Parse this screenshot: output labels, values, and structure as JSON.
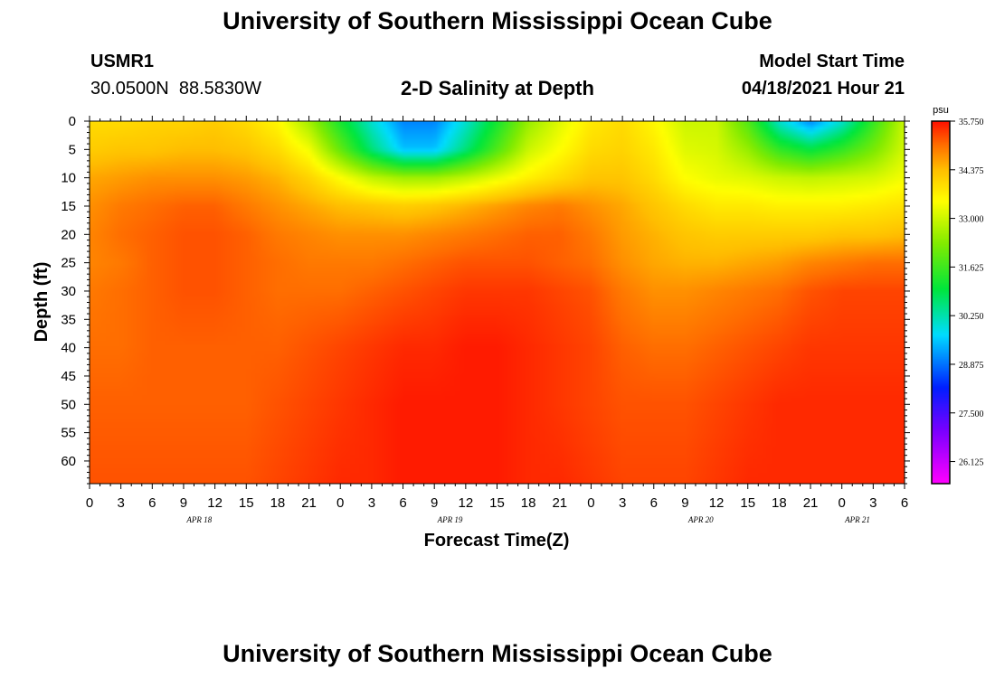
{
  "header": {
    "title": "University of Southern Mississippi Ocean Cube",
    "station_id": "USMR1",
    "coordinates": "30.0500N  88.5830W",
    "plot_title": "2-D Salinity at Depth",
    "model_start_label": "Model Start Time",
    "model_start_value": "04/18/2021 Hour 21",
    "footer_title": "University of Southern Mississippi Ocean Cube"
  },
  "colorbar": {
    "unit": "psu",
    "ticks": [
      "35.750",
      "34.375",
      "33.000",
      "31.625",
      "30.250",
      "28.875",
      "27.500",
      "26.125"
    ],
    "min": 25.5,
    "max": 35.75
  },
  "chart_data": {
    "type": "heatmap",
    "title": "2-D Salinity at Depth",
    "xlabel": "Forecast Time(Z)",
    "ylabel": "Depth (ft)",
    "x_tick_labels": [
      "0",
      "3",
      "6",
      "9",
      "12",
      "15",
      "18",
      "21",
      "0",
      "3",
      "6",
      "9",
      "12",
      "15",
      "18",
      "21",
      "0",
      "3",
      "6",
      "9",
      "12",
      "15",
      "18",
      "21",
      "0",
      "3",
      "6"
    ],
    "x_hours_range": [
      0,
      78
    ],
    "x_date_labels": [
      {
        "label": "APR 18",
        "hour": 10.5
      },
      {
        "label": "APR 19",
        "hour": 34.5
      },
      {
        "label": "APR 20",
        "hour": 58.5
      },
      {
        "label": "APR 21",
        "hour": 73.5
      }
    ],
    "y_tick_labels": [
      "0",
      "5",
      "10",
      "15",
      "20",
      "25",
      "30",
      "35",
      "40",
      "45",
      "50",
      "55",
      "60"
    ],
    "y_ticks_ft": [
      0,
      5,
      10,
      15,
      20,
      25,
      30,
      35,
      40,
      45,
      50,
      55,
      60
    ],
    "ylim_ft": [
      0,
      64
    ],
    "value_unit": "psu",
    "depth_ft": [
      0,
      5,
      10,
      15,
      20,
      25,
      30,
      40,
      50,
      64
    ],
    "hours": [
      0,
      3,
      6,
      9,
      12,
      15,
      18,
      21,
      24,
      27,
      30,
      33,
      36,
      39,
      42,
      45,
      48,
      51,
      54,
      57,
      60,
      63,
      66,
      69,
      72,
      75,
      78
    ],
    "salinity_psu": [
      [
        34.0,
        34.0,
        34.1,
        34.1,
        34.2,
        34.0,
        33.6,
        32.6,
        31.2,
        30.0,
        29.0,
        29.0,
        30.0,
        31.2,
        32.5,
        33.2,
        33.8,
        34.0,
        33.6,
        33.0,
        33.0,
        31.8,
        30.0,
        29.0,
        30.0,
        31.5,
        33.0
      ],
      [
        34.2,
        34.3,
        34.3,
        34.4,
        34.4,
        34.3,
        34.0,
        33.4,
        32.0,
        30.6,
        29.5,
        29.5,
        30.6,
        31.8,
        33.0,
        33.5,
        34.0,
        34.1,
        33.8,
        33.2,
        33.1,
        32.5,
        31.5,
        31.0,
        31.5,
        32.2,
        33.1
      ],
      [
        34.6,
        34.7,
        34.8,
        34.8,
        34.8,
        34.7,
        34.5,
        34.1,
        33.5,
        32.9,
        32.6,
        32.6,
        32.9,
        33.3,
        33.7,
        34.0,
        34.3,
        34.3,
        34.0,
        33.5,
        33.3,
        33.2,
        33.0,
        32.9,
        33.0,
        33.1,
        33.4
      ],
      [
        34.8,
        35.0,
        35.1,
        35.2,
        35.2,
        35.0,
        34.8,
        34.6,
        34.4,
        34.3,
        34.2,
        34.3,
        34.5,
        34.7,
        34.9,
        35.0,
        34.8,
        34.6,
        34.3,
        34.0,
        33.8,
        33.8,
        33.7,
        33.7,
        33.7,
        33.8,
        33.9
      ],
      [
        34.9,
        35.1,
        35.2,
        35.3,
        35.3,
        35.2,
        35.0,
        34.9,
        34.8,
        34.8,
        34.8,
        34.9,
        35.0,
        35.1,
        35.2,
        35.2,
        35.0,
        34.7,
        34.5,
        34.3,
        34.2,
        34.2,
        34.2,
        34.2,
        34.3,
        34.3,
        34.4
      ],
      [
        34.9,
        35.0,
        35.2,
        35.3,
        35.3,
        35.2,
        35.1,
        35.0,
        35.0,
        35.0,
        35.1,
        35.2,
        35.3,
        35.3,
        35.3,
        35.2,
        35.1,
        34.8,
        34.6,
        34.5,
        34.5,
        34.6,
        34.7,
        34.9,
        35.0,
        35.1,
        35.1
      ],
      [
        35.0,
        35.1,
        35.2,
        35.3,
        35.3,
        35.2,
        35.1,
        35.1,
        35.1,
        35.2,
        35.3,
        35.4,
        35.5,
        35.5,
        35.5,
        35.4,
        35.3,
        35.0,
        34.8,
        34.8,
        34.9,
        35.0,
        35.1,
        35.3,
        35.4,
        35.4,
        35.4
      ],
      [
        35.1,
        35.1,
        35.2,
        35.2,
        35.2,
        35.2,
        35.2,
        35.3,
        35.4,
        35.5,
        35.6,
        35.6,
        35.7,
        35.7,
        35.6,
        35.5,
        35.4,
        35.2,
        35.1,
        35.1,
        35.2,
        35.3,
        35.4,
        35.5,
        35.5,
        35.5,
        35.5
      ],
      [
        35.2,
        35.2,
        35.2,
        35.2,
        35.2,
        35.2,
        35.3,
        35.4,
        35.5,
        35.6,
        35.7,
        35.7,
        35.7,
        35.7,
        35.6,
        35.5,
        35.4,
        35.3,
        35.3,
        35.3,
        35.4,
        35.5,
        35.6,
        35.6,
        35.6,
        35.6,
        35.6
      ],
      [
        35.3,
        35.3,
        35.3,
        35.3,
        35.3,
        35.3,
        35.4,
        35.5,
        35.6,
        35.6,
        35.7,
        35.7,
        35.7,
        35.7,
        35.6,
        35.6,
        35.5,
        35.4,
        35.4,
        35.4,
        35.5,
        35.6,
        35.6,
        35.6,
        35.6,
        35.6,
        35.6
      ]
    ],
    "colorbar_range": [
      25.5,
      35.75
    ]
  }
}
